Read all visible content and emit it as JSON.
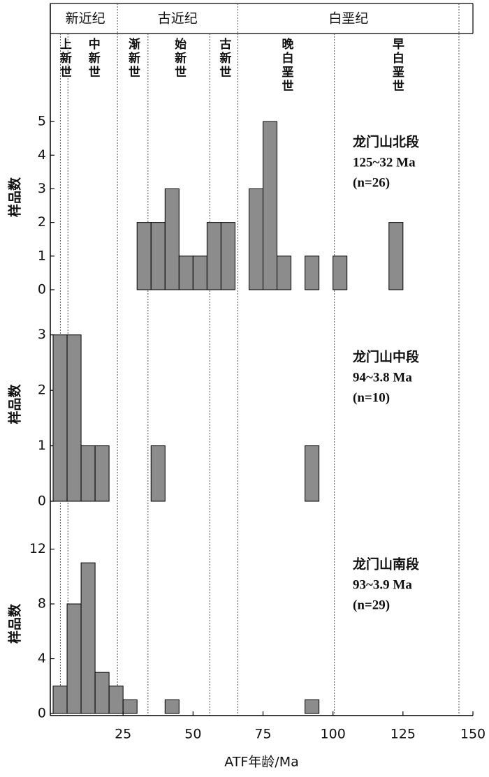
{
  "timescale": {
    "eras": [
      {
        "label": "新近纪",
        "start": 0,
        "end": 23
      },
      {
        "label": "古近纪",
        "start": 23,
        "end": 66
      },
      {
        "label": "白垩纪",
        "start": 66,
        "end": 145
      }
    ],
    "epochs": [
      {
        "label": "上新世",
        "start": 2.6,
        "end": 5.3
      },
      {
        "label": "中新世",
        "start": 5.3,
        "end": 23
      },
      {
        "label": "渐新世",
        "start": 23,
        "end": 33.9
      },
      {
        "label": "始新世",
        "start": 33.9,
        "end": 56
      },
      {
        "label": "古新世",
        "start": 56,
        "end": 66
      },
      {
        "label": "晚白垩世",
        "start": 66,
        "end": 100.5
      },
      {
        "label": "早白垩世",
        "start": 100.5,
        "end": 145
      }
    ],
    "boundaries": [
      2.6,
      5.3,
      23,
      33.9,
      56,
      66,
      100.5,
      145
    ]
  },
  "chart_data": [
    {
      "type": "histogram",
      "ylabel": "样品数",
      "annotation": [
        "龙门山北段",
        "125~32 Ma",
        "(n=26)"
      ],
      "bins": [
        0,
        5,
        10,
        15,
        20,
        25,
        30,
        35,
        40,
        45,
        50,
        55,
        60,
        65,
        70,
        75,
        80,
        85,
        90,
        95,
        100,
        105,
        110,
        115,
        120,
        125
      ],
      "counts": [
        0,
        0,
        0,
        0,
        0,
        0,
        2,
        2,
        3,
        1,
        1,
        2,
        2,
        0,
        3,
        5,
        1,
        0,
        1,
        0,
        1,
        0,
        0,
        0,
        2
      ],
      "color": "#8c8c8c",
      "xlim": [
        -1,
        150
      ],
      "ylim": [
        0,
        5.5
      ],
      "yticks": [
        0,
        1,
        2,
        3,
        4,
        5
      ]
    },
    {
      "type": "histogram",
      "ylabel": "样品数",
      "annotation": [
        "龙门山中段",
        "94~3.8 Ma",
        "(n=10)"
      ],
      "bins": [
        0,
        5,
        10,
        15,
        20,
        25,
        30,
        35,
        40,
        45,
        50,
        55,
        60,
        65,
        70,
        75,
        80,
        85,
        90,
        95,
        100,
        105,
        110,
        115,
        120,
        125
      ],
      "counts": [
        3,
        3,
        1,
        1,
        0,
        0,
        0,
        1,
        0,
        0,
        0,
        0,
        0,
        0,
        0,
        0,
        0,
        0,
        1,
        0,
        0,
        0,
        0,
        0,
        0
      ],
      "color": "#8c8c8c",
      "xlim": [
        -1,
        150
      ],
      "ylim": [
        0,
        3.5
      ],
      "yticks": [
        0,
        1,
        2,
        3
      ]
    },
    {
      "type": "histogram",
      "ylabel": "样品数",
      "annotation": [
        "龙门山南段",
        "93~3.9 Ma",
        "(n=29)"
      ],
      "bins": [
        0,
        5,
        10,
        15,
        20,
        25,
        30,
        35,
        40,
        45,
        50,
        55,
        60,
        65,
        70,
        75,
        80,
        85,
        90,
        95,
        100,
        105,
        110,
        115,
        120,
        125
      ],
      "counts": [
        2,
        8,
        11,
        3,
        2,
        1,
        0,
        0,
        1,
        0,
        0,
        0,
        0,
        0,
        0,
        0,
        0,
        0,
        1,
        0,
        0,
        0,
        0,
        0,
        0
      ],
      "color": "#8c8c8c",
      "xlim": [
        -1,
        150
      ],
      "ylim": [
        0,
        13.1
      ],
      "yticks": [
        0,
        4,
        8,
        12
      ],
      "xticks": [
        25,
        50,
        75,
        100,
        125,
        150
      ],
      "xlabel": "ATF年龄/Ma"
    }
  ]
}
